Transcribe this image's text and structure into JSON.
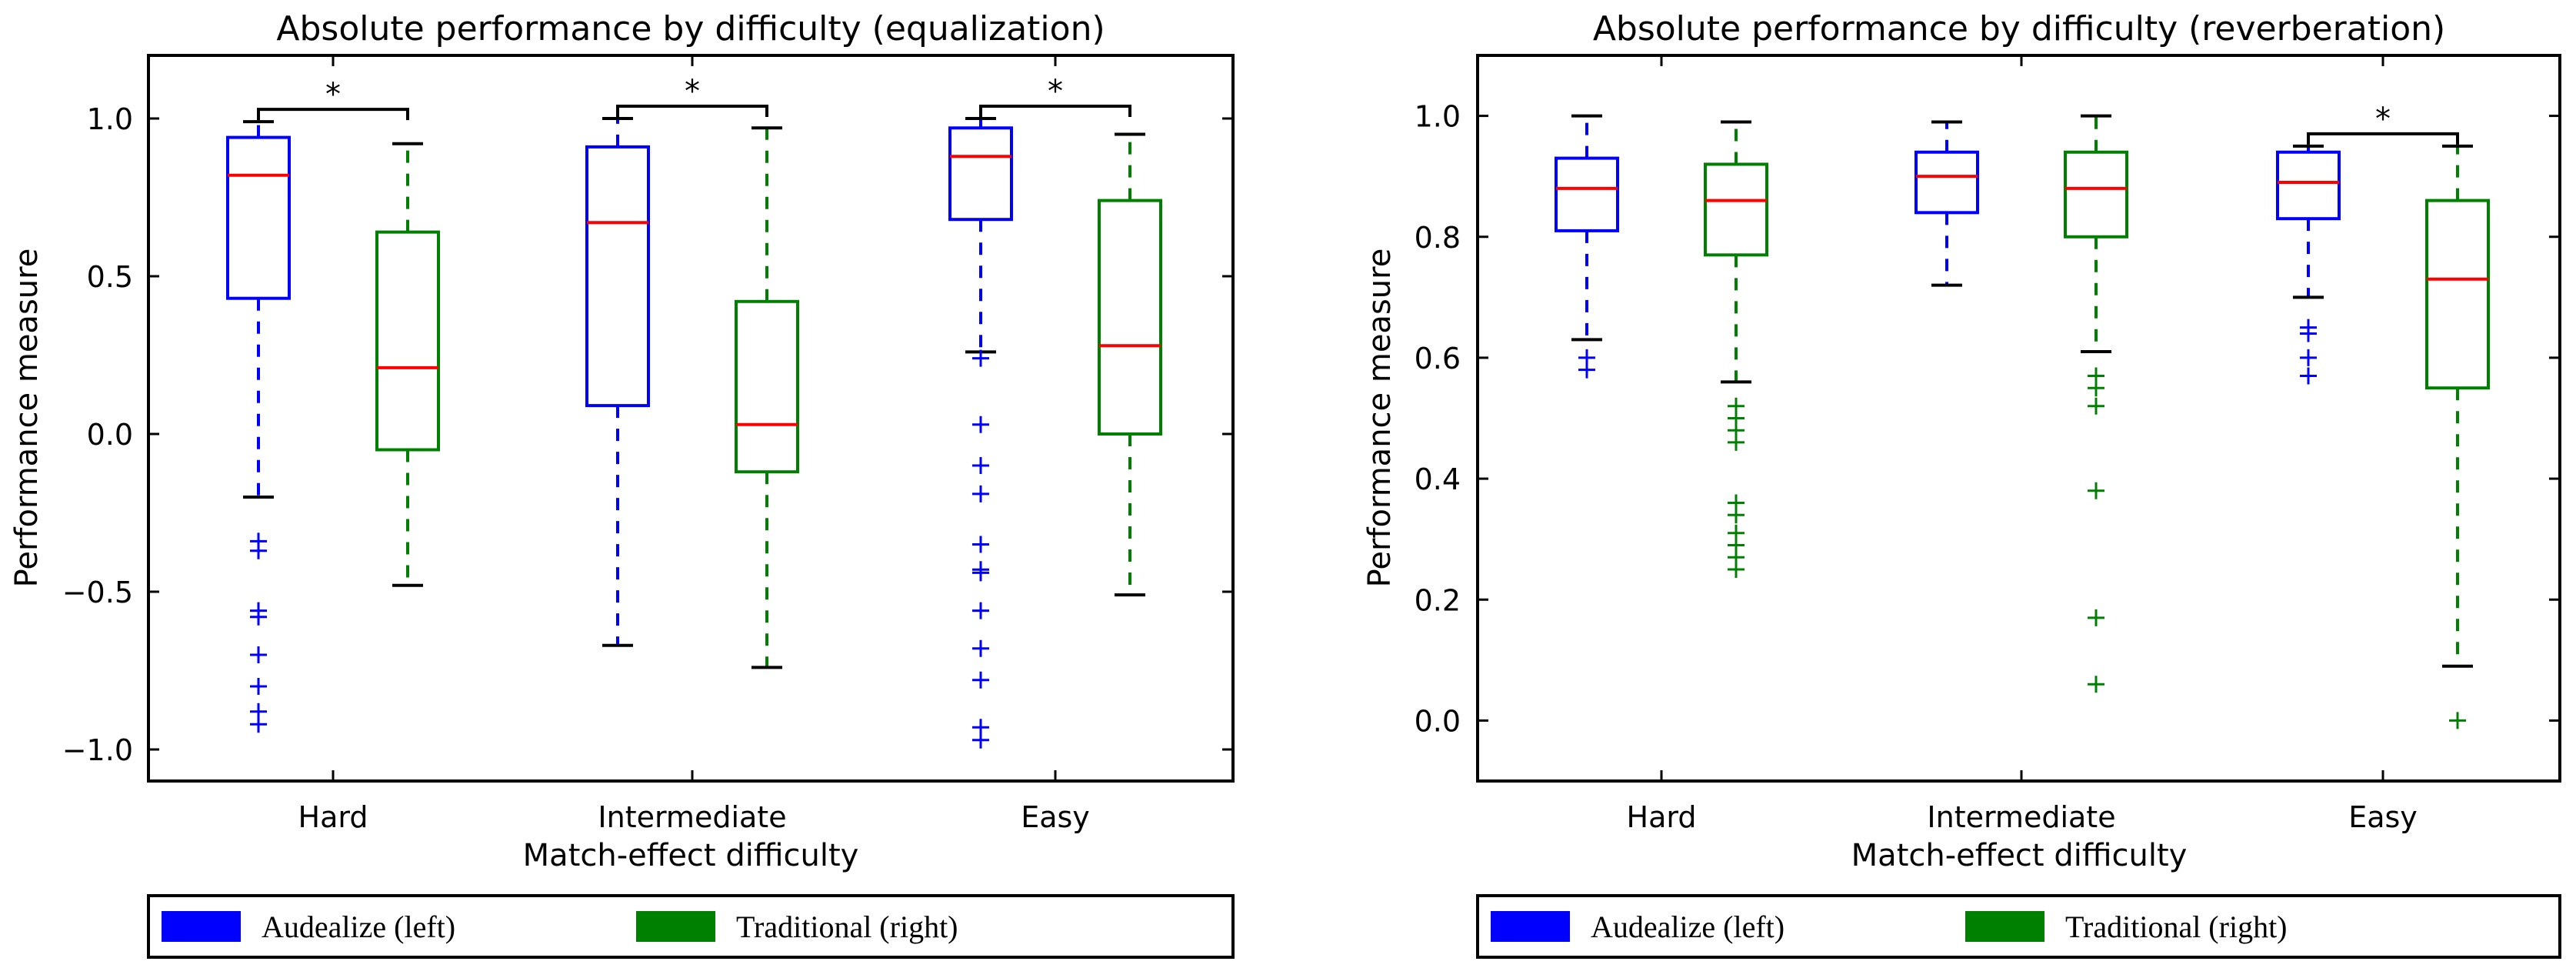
{
  "chart_data": [
    {
      "type": "box",
      "title": "Absolute performance by difficulty (equalization)",
      "xlabel": "Match-effect difficulty",
      "ylabel": "Performance measure",
      "ylim": [
        -1.1,
        1.2
      ],
      "yticks": [
        -1.0,
        -0.5,
        0.0,
        0.5,
        1.0
      ],
      "ytick_labels": [
        "−1.0",
        "−0.5",
        "0.0",
        "0.5",
        "1.0"
      ],
      "categories": [
        "Hard",
        "Intermediate",
        "Easy"
      ],
      "series": [
        {
          "name": "Audealize (left)",
          "color": "#0000ff",
          "boxes": [
            {
              "category": "Hard",
              "whisker_low": -0.2,
              "q1": 0.43,
              "median": 0.82,
              "q3": 0.94,
              "whisker_high": 0.99,
              "outliers": [
                -0.34,
                -0.37,
                -0.56,
                -0.58,
                -0.7,
                -0.8,
                -0.88,
                -0.92
              ]
            },
            {
              "category": "Intermediate",
              "whisker_low": -0.67,
              "q1": 0.09,
              "median": 0.67,
              "q3": 0.91,
              "whisker_high": 1.0,
              "outliers": []
            },
            {
              "category": "Easy",
              "whisker_low": 0.26,
              "q1": 0.68,
              "median": 0.88,
              "q3": 0.97,
              "whisker_high": 1.0,
              "outliers": [
                0.24,
                0.03,
                -0.1,
                -0.19,
                -0.35,
                -0.43,
                -0.44,
                -0.56,
                -0.68,
                -0.78,
                -0.93,
                -0.97
              ]
            }
          ]
        },
        {
          "name": "Traditional (right)",
          "color": "#008000",
          "boxes": [
            {
              "category": "Hard",
              "whisker_low": -0.48,
              "q1": -0.05,
              "median": 0.21,
              "q3": 0.64,
              "whisker_high": 0.92,
              "outliers": []
            },
            {
              "category": "Intermediate",
              "whisker_low": -0.74,
              "q1": -0.12,
              "median": 0.03,
              "q3": 0.42,
              "whisker_high": 0.97,
              "outliers": []
            },
            {
              "category": "Easy",
              "whisker_low": -0.51,
              "q1": 0.0,
              "median": 0.28,
              "q3": 0.74,
              "whisker_high": 0.95,
              "outliers": []
            }
          ]
        }
      ],
      "significance": [
        {
          "category": "Hard",
          "label": "*"
        },
        {
          "category": "Intermediate",
          "label": "*"
        },
        {
          "category": "Easy",
          "label": "*"
        }
      ],
      "legend": {
        "position": "bottom",
        "entries": [
          "Audealize (left)",
          "Traditional (right)"
        ]
      }
    },
    {
      "type": "box",
      "title": "Absolute performance by difficulty (reverberation)",
      "xlabel": "Match-effect difficulty",
      "ylabel": "Performance measure",
      "ylim": [
        -0.1,
        1.1
      ],
      "yticks": [
        0.0,
        0.2,
        0.4,
        0.6,
        0.8,
        1.0
      ],
      "ytick_labels": [
        "0.0",
        "0.2",
        "0.4",
        "0.6",
        "0.8",
        "1.0"
      ],
      "categories": [
        "Hard",
        "Intermediate",
        "Easy"
      ],
      "series": [
        {
          "name": "Audealize (left)",
          "color": "#0000ff",
          "boxes": [
            {
              "category": "Hard",
              "whisker_low": 0.63,
              "q1": 0.81,
              "median": 0.88,
              "q3": 0.93,
              "whisker_high": 1.0,
              "outliers": [
                0.6,
                0.58
              ]
            },
            {
              "category": "Intermediate",
              "whisker_low": 0.72,
              "q1": 0.84,
              "median": 0.9,
              "q3": 0.94,
              "whisker_high": 0.99,
              "outliers": []
            },
            {
              "category": "Easy",
              "whisker_low": 0.7,
              "q1": 0.83,
              "median": 0.89,
              "q3": 0.94,
              "whisker_high": 0.95,
              "outliers": [
                0.65,
                0.64,
                0.6,
                0.57
              ]
            }
          ]
        },
        {
          "name": "Traditional (right)",
          "color": "#008000",
          "boxes": [
            {
              "category": "Hard",
              "whisker_low": 0.56,
              "q1": 0.77,
              "median": 0.86,
              "q3": 0.92,
              "whisker_high": 0.99,
              "outliers": [
                0.52,
                0.5,
                0.48,
                0.46,
                0.36,
                0.34,
                0.31,
                0.29,
                0.27,
                0.25
              ]
            },
            {
              "category": "Intermediate",
              "whisker_low": 0.61,
              "q1": 0.8,
              "median": 0.88,
              "q3": 0.94,
              "whisker_high": 1.0,
              "outliers": [
                0.57,
                0.55,
                0.52,
                0.38,
                0.17,
                0.06
              ]
            },
            {
              "category": "Easy",
              "whisker_low": 0.09,
              "q1": 0.55,
              "median": 0.73,
              "q3": 0.86,
              "whisker_high": 0.95,
              "outliers": [
                0.0
              ]
            }
          ]
        }
      ],
      "significance": [
        {
          "category": "Easy",
          "label": "*"
        }
      ],
      "legend": {
        "position": "bottom",
        "entries": [
          "Audealize (left)",
          "Traditional (right)"
        ]
      }
    }
  ]
}
